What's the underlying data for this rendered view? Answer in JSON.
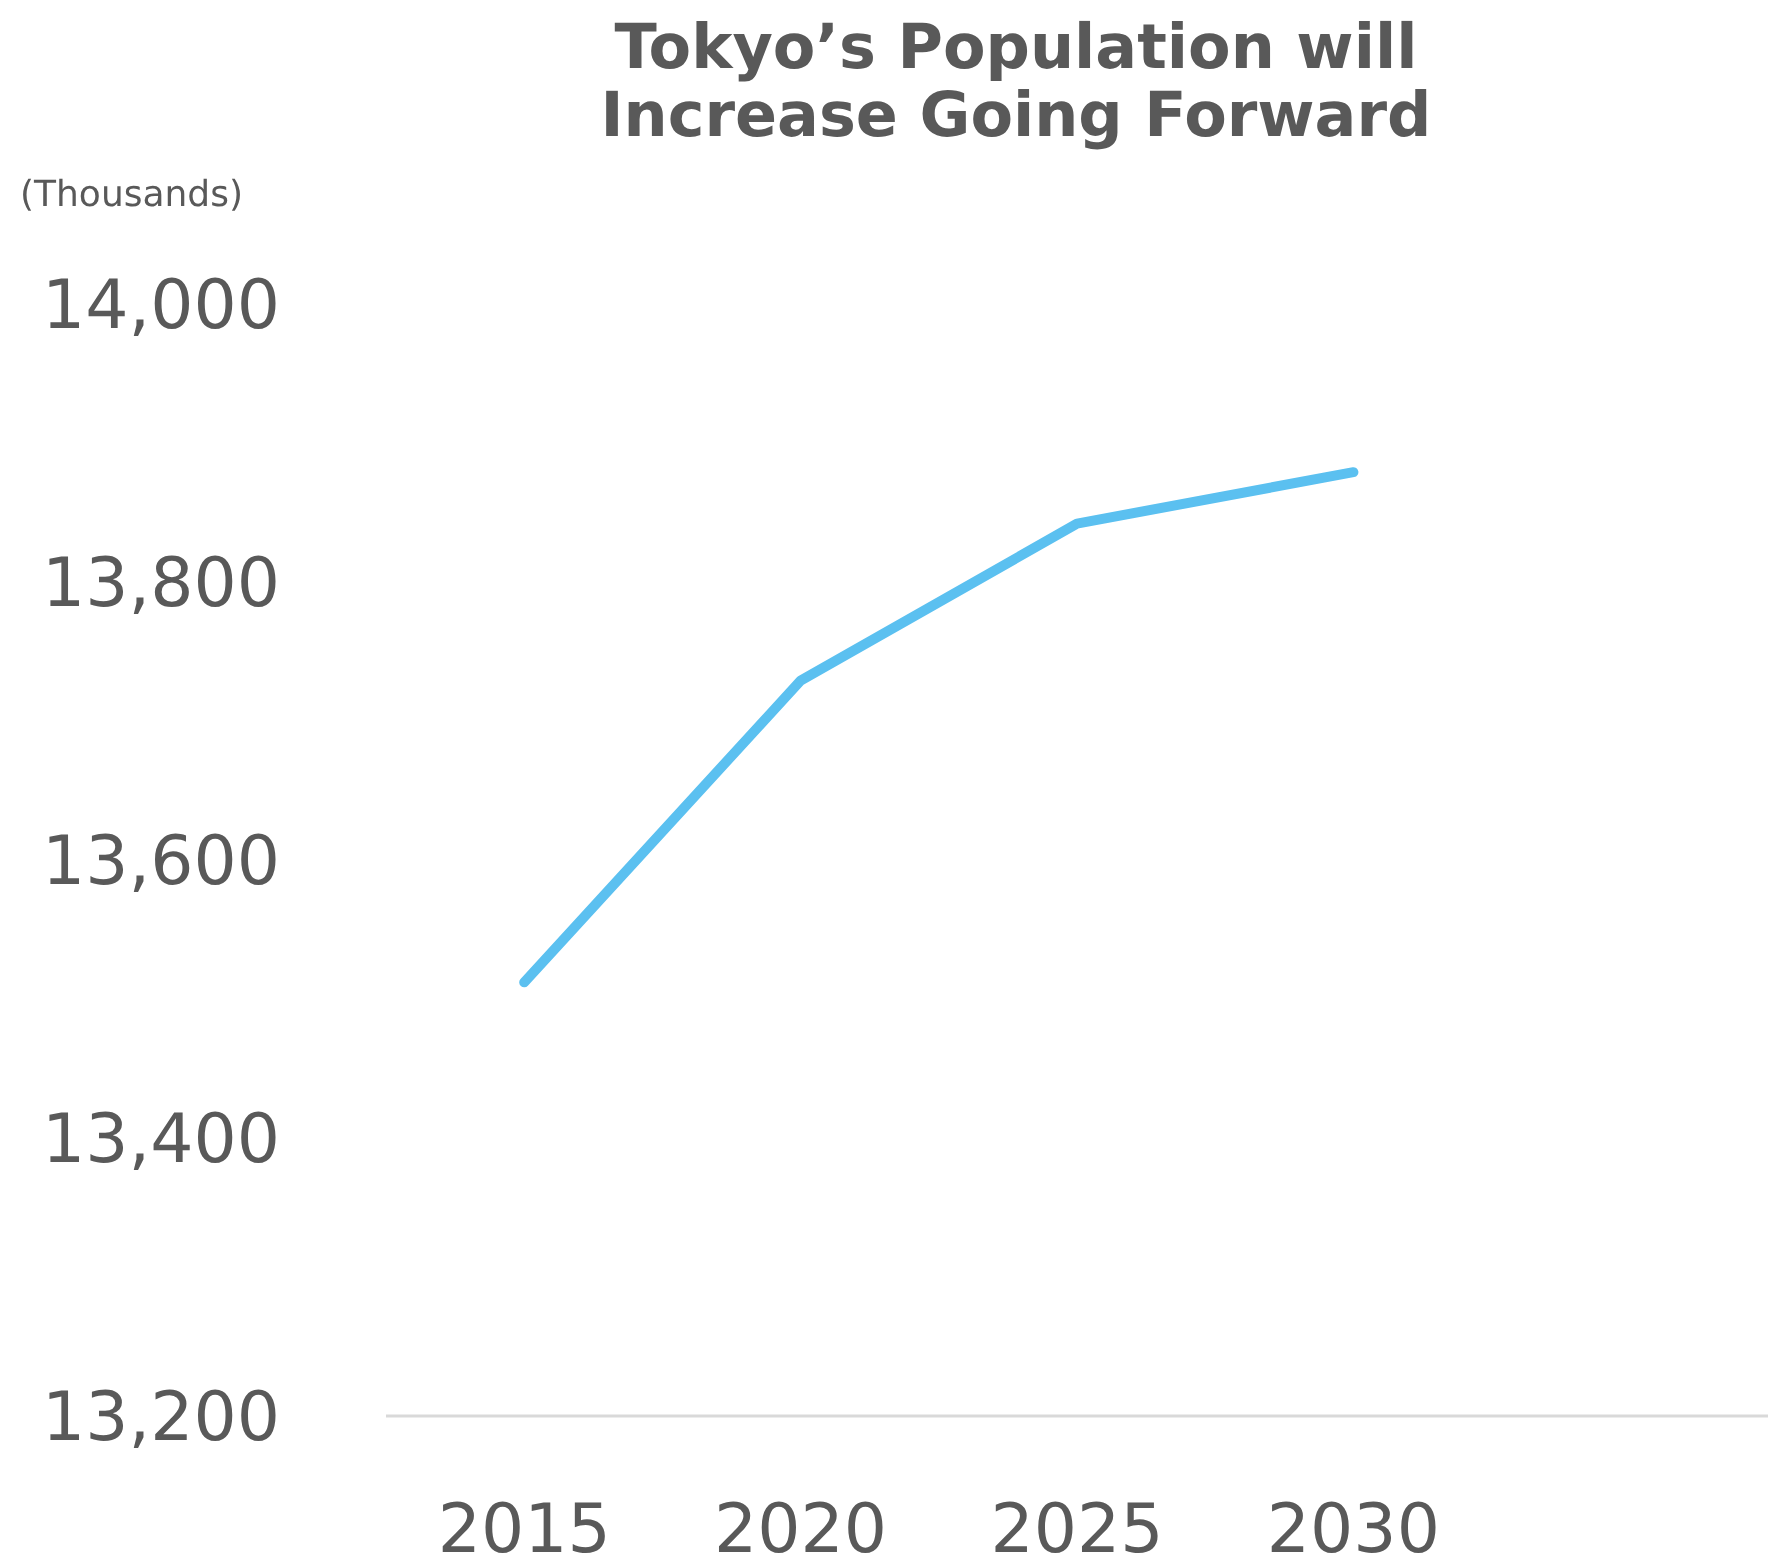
{
  "chart_data": {
    "type": "line",
    "title": "Tokyo’s Population will Increase Going Forward",
    "ylabel": "(Thousands)",
    "categories": [
      "2015",
      "2020",
      "2025",
      "2030",
      null
    ],
    "series": [
      {
        "color": "#5bc0f0",
        "values": [
          13512,
          13729,
          13842,
          13879,
          null
        ]
      }
    ],
    "ylim": [
      13200,
      14000
    ],
    "yticks": [
      {
        "value": 13200,
        "label": "13,200"
      },
      {
        "value": 13400,
        "label": "13,400"
      },
      {
        "value": 13600,
        "label": "13,600"
      },
      {
        "value": 13800,
        "label": "13,800"
      },
      {
        "value": 14000,
        "label": "14,000"
      }
    ],
    "grid": false,
    "marker": "none",
    "line_style": "solid"
  }
}
